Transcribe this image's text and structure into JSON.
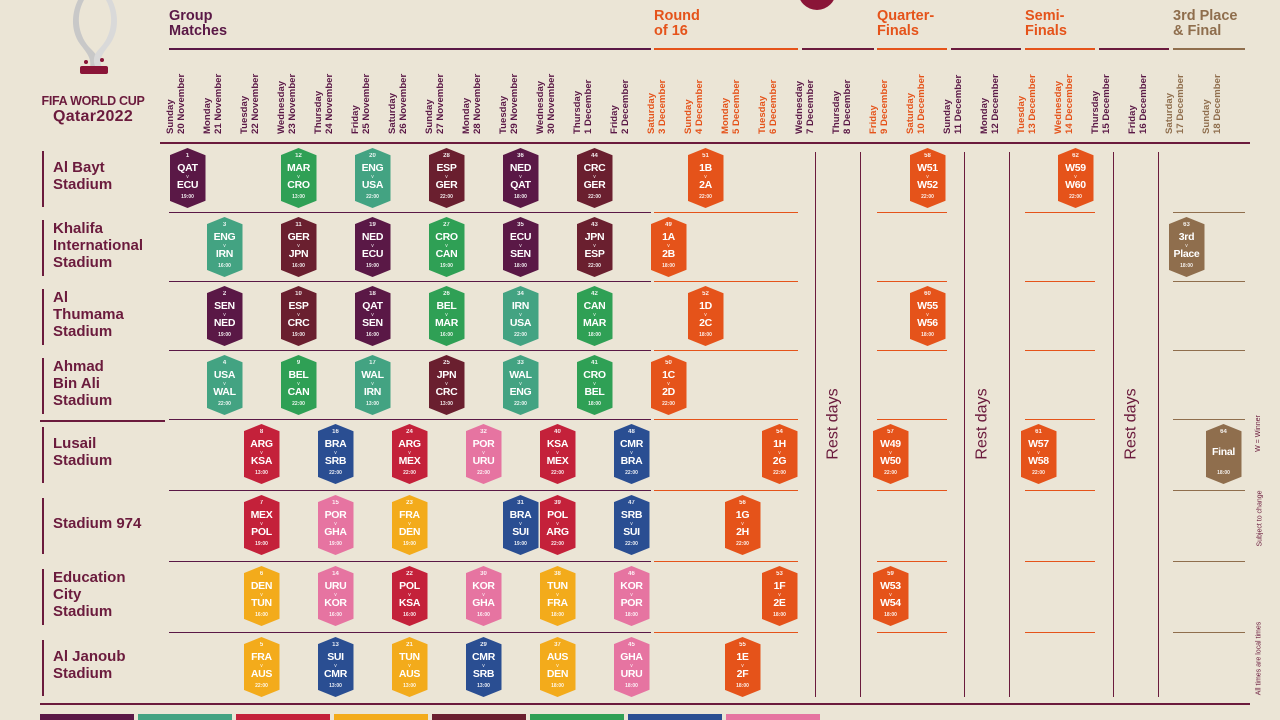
{
  "header": {
    "logo_title": "FIFA WORLD CUP",
    "logo_subtitle": "Qatar2022"
  },
  "colors": {
    "group": "#5a1846",
    "knockout": "#e5531a",
    "third": "#8f6e4d",
    "venue_text": "#6b1b3d"
  },
  "stages": [
    {
      "label_1": "Group",
      "label_2": "Matches",
      "color": "#5a1846"
    },
    {
      "label_1": "Round",
      "label_2": "of 16",
      "color": "#e5531a"
    },
    {
      "label_1": "Quarter-",
      "label_2": "Finals",
      "color": "#e5531a"
    },
    {
      "label_1": "Semi-",
      "label_2": "Finals",
      "color": "#e5531a"
    },
    {
      "label_1": "3rd Place",
      "label_2": "& Final",
      "color": "#8f6e4d"
    }
  ],
  "dates": [
    {
      "day": "Sunday",
      "date": "20 November",
      "stage": "group"
    },
    {
      "day": "Monday",
      "date": "21 November",
      "stage": "group"
    },
    {
      "day": "Tuesday",
      "date": "22 November",
      "stage": "group"
    },
    {
      "day": "Wednesday",
      "date": "23 November",
      "stage": "group"
    },
    {
      "day": "Thursday",
      "date": "24 November",
      "stage": "group"
    },
    {
      "day": "Friday",
      "date": "25 November",
      "stage": "group"
    },
    {
      "day": "Saturday",
      "date": "26 November",
      "stage": "group"
    },
    {
      "day": "Sunday",
      "date": "27 November",
      "stage": "group"
    },
    {
      "day": "Monday",
      "date": "28 November",
      "stage": "group"
    },
    {
      "day": "Tuesday",
      "date": "29 November",
      "stage": "group"
    },
    {
      "day": "Wednesday",
      "date": "30 November",
      "stage": "group"
    },
    {
      "day": "Thursday",
      "date": "1 December",
      "stage": "group"
    },
    {
      "day": "Friday",
      "date": "2 December",
      "stage": "group"
    },
    {
      "day": "Saturday",
      "date": "3 December",
      "stage": "ko"
    },
    {
      "day": "Sunday",
      "date": "4 December",
      "stage": "ko"
    },
    {
      "day": "Monday",
      "date": "5 December",
      "stage": "ko"
    },
    {
      "day": "Tuesday",
      "date": "6 December",
      "stage": "ko"
    },
    {
      "day": "Wednesday",
      "date": "7 December",
      "stage": "rest"
    },
    {
      "day": "Thursday",
      "date": "8 December",
      "stage": "rest"
    },
    {
      "day": "Friday",
      "date": "9 December",
      "stage": "ko"
    },
    {
      "day": "Saturday",
      "date": "10 December",
      "stage": "ko"
    },
    {
      "day": "Sunday",
      "date": "11 December",
      "stage": "rest"
    },
    {
      "day": "Monday",
      "date": "12 December",
      "stage": "rest"
    },
    {
      "day": "Tuesday",
      "date": "13 December",
      "stage": "ko"
    },
    {
      "day": "Wednesday",
      "date": "14 December",
      "stage": "ko"
    },
    {
      "day": "Thursday",
      "date": "15 December",
      "stage": "rest"
    },
    {
      "day": "Friday",
      "date": "16 December",
      "stage": "rest"
    },
    {
      "day": "Saturday",
      "date": "17 December",
      "stage": "final"
    },
    {
      "day": "Sunday",
      "date": "18 December",
      "stage": "final"
    }
  ],
  "venues": [
    {
      "line_1": "Al Bayt",
      "line_2": "Stadium",
      "line_3": ""
    },
    {
      "line_1": "Khalifa",
      "line_2": "International",
      "line_3": "Stadium"
    },
    {
      "line_1": "Al",
      "line_2": "Thumama",
      "line_3": "Stadium"
    },
    {
      "line_1": "Ahmad",
      "line_2": "Bin Ali",
      "line_3": "Stadium"
    },
    {
      "line_1": "Lusail",
      "line_2": "Stadium",
      "line_3": ""
    },
    {
      "line_1": "Stadium 974",
      "line_2": "",
      "line_3": ""
    },
    {
      "line_1": "Education",
      "line_2": "City",
      "line_3": "Stadium"
    },
    {
      "line_1": "Al Janoub",
      "line_2": "Stadium",
      "line_3": ""
    }
  ],
  "rest_label": "Rest days",
  "notes": [
    "W = Winner",
    "Subject to change",
    "All times are local times"
  ],
  "group_colors": {
    "A": "#5a1846",
    "B": "#43a382",
    "C": "#c4213a",
    "D": "#2fa055",
    "E": "#6a1f2f",
    "F": "#2a4e92",
    "G": "#f3ab1b",
    "H": "#e674a1",
    "KO": "#e5531a",
    "TP": "#8f6e4d"
  },
  "matches": [
    {
      "venue": 0,
      "day": 0,
      "num": "1",
      "t1": "QAT",
      "t2": "ECU",
      "time": "19:00",
      "g": "A"
    },
    {
      "venue": 0,
      "day": 3,
      "num": "12",
      "t1": "MAR",
      "t2": "CRO",
      "time": "13:00",
      "g": "D"
    },
    {
      "venue": 0,
      "day": 5,
      "num": "20",
      "t1": "ENG",
      "t2": "USA",
      "time": "22:00",
      "g": "B"
    },
    {
      "venue": 0,
      "day": 7,
      "num": "28",
      "t1": "ESP",
      "t2": "GER",
      "time": "22:00",
      "g": "E"
    },
    {
      "venue": 0,
      "day": 9,
      "num": "36",
      "t1": "NED",
      "t2": "QAT",
      "time": "18:00",
      "g": "A"
    },
    {
      "venue": 0,
      "day": 11,
      "num": "44",
      "t1": "CRC",
      "t2": "GER",
      "time": "22:00",
      "g": "E"
    },
    {
      "venue": 0,
      "day": 14,
      "num": "51",
      "t1": "1B",
      "t2": "2A",
      "time": "22:00",
      "g": "KO"
    },
    {
      "venue": 0,
      "day": 20,
      "num": "58",
      "t1": "W51",
      "t2": "W52",
      "time": "22:00",
      "g": "KO"
    },
    {
      "venue": 0,
      "day": 24,
      "num": "62",
      "t1": "W59",
      "t2": "W60",
      "time": "22:00",
      "g": "KO"
    },
    {
      "venue": 1,
      "day": 1,
      "num": "3",
      "t1": "ENG",
      "t2": "IRN",
      "time": "16:00",
      "g": "B"
    },
    {
      "venue": 1,
      "day": 3,
      "num": "11",
      "t1": "GER",
      "t2": "JPN",
      "time": "16:00",
      "g": "E"
    },
    {
      "venue": 1,
      "day": 5,
      "num": "19",
      "t1": "NED",
      "t2": "ECU",
      "time": "19:00",
      "g": "A"
    },
    {
      "venue": 1,
      "day": 7,
      "num": "27",
      "t1": "CRO",
      "t2": "CAN",
      "time": "19:00",
      "g": "D"
    },
    {
      "venue": 1,
      "day": 9,
      "num": "35",
      "t1": "ECU",
      "t2": "SEN",
      "time": "18:00",
      "g": "A"
    },
    {
      "venue": 1,
      "day": 11,
      "num": "43",
      "t1": "JPN",
      "t2": "ESP",
      "time": "22:00",
      "g": "E"
    },
    {
      "venue": 1,
      "day": 13,
      "num": "49",
      "t1": "1A",
      "t2": "2B",
      "time": "18:00",
      "g": "KO"
    },
    {
      "venue": 1,
      "day": 27,
      "num": "63",
      "t1": "3rd",
      "t2": "Place",
      "time": "18:00",
      "g": "TP"
    },
    {
      "venue": 2,
      "day": 1,
      "num": "2",
      "t1": "SEN",
      "t2": "NED",
      "time": "19:00",
      "g": "A"
    },
    {
      "venue": 2,
      "day": 3,
      "num": "10",
      "t1": "ESP",
      "t2": "CRC",
      "time": "19:00",
      "g": "E"
    },
    {
      "venue": 2,
      "day": 5,
      "num": "18",
      "t1": "QAT",
      "t2": "SEN",
      "time": "16:00",
      "g": "A"
    },
    {
      "venue": 2,
      "day": 7,
      "num": "26",
      "t1": "BEL",
      "t2": "MAR",
      "time": "16:00",
      "g": "D"
    },
    {
      "venue": 2,
      "day": 9,
      "num": "34",
      "t1": "IRN",
      "t2": "USA",
      "time": "22:00",
      "g": "B"
    },
    {
      "venue": 2,
      "day": 11,
      "num": "42",
      "t1": "CAN",
      "t2": "MAR",
      "time": "18:00",
      "g": "D"
    },
    {
      "venue": 2,
      "day": 14,
      "num": "52",
      "t1": "1D",
      "t2": "2C",
      "time": "18:00",
      "g": "KO"
    },
    {
      "venue": 2,
      "day": 20,
      "num": "60",
      "t1": "W55",
      "t2": "W56",
      "time": "18:00",
      "g": "KO"
    },
    {
      "venue": 3,
      "day": 1,
      "num": "4",
      "t1": "USA",
      "t2": "WAL",
      "time": "22:00",
      "g": "B"
    },
    {
      "venue": 3,
      "day": 3,
      "num": "9",
      "t1": "BEL",
      "t2": "CAN",
      "time": "22:00",
      "g": "D"
    },
    {
      "venue": 3,
      "day": 5,
      "num": "17",
      "t1": "WAL",
      "t2": "IRN",
      "time": "13:00",
      "g": "B"
    },
    {
      "venue": 3,
      "day": 7,
      "num": "25",
      "t1": "JPN",
      "t2": "CRC",
      "time": "13:00",
      "g": "E"
    },
    {
      "venue": 3,
      "day": 9,
      "num": "33",
      "t1": "WAL",
      "t2": "ENG",
      "time": "22:00",
      "g": "B"
    },
    {
      "venue": 3,
      "day": 11,
      "num": "41",
      "t1": "CRO",
      "t2": "BEL",
      "time": "18:00",
      "g": "D"
    },
    {
      "venue": 3,
      "day": 13,
      "num": "50",
      "t1": "1C",
      "t2": "2D",
      "time": "22:00",
      "g": "KO"
    },
    {
      "venue": 4,
      "day": 2,
      "num": "8",
      "t1": "ARG",
      "t2": "KSA",
      "time": "13:00",
      "g": "C"
    },
    {
      "venue": 4,
      "day": 4,
      "num": "16",
      "t1": "BRA",
      "t2": "SRB",
      "time": "22:00",
      "g": "F"
    },
    {
      "venue": 4,
      "day": 6,
      "num": "24",
      "t1": "ARG",
      "t2": "MEX",
      "time": "22:00",
      "g": "C"
    },
    {
      "venue": 4,
      "day": 8,
      "num": "32",
      "t1": "POR",
      "t2": "URU",
      "time": "22:00",
      "g": "H"
    },
    {
      "venue": 4,
      "day": 10,
      "num": "40",
      "t1": "KSA",
      "t2": "MEX",
      "time": "22:00",
      "g": "C"
    },
    {
      "venue": 4,
      "day": 12,
      "num": "48",
      "t1": "CMR",
      "t2": "BRA",
      "time": "22:00",
      "g": "F"
    },
    {
      "venue": 4,
      "day": 16,
      "num": "54",
      "t1": "1H",
      "t2": "2G",
      "time": "22:00",
      "g": "KO"
    },
    {
      "venue": 4,
      "day": 19,
      "num": "57",
      "t1": "W49",
      "t2": "W50",
      "time": "22:00",
      "g": "KO"
    },
    {
      "venue": 4,
      "day": 23,
      "num": "61",
      "t1": "W57",
      "t2": "W58",
      "time": "22:00",
      "g": "KO"
    },
    {
      "venue": 4,
      "day": 28,
      "num": "64",
      "t1": "Final",
      "t2": "",
      "time": "18:00",
      "g": "TP"
    },
    {
      "venue": 5,
      "day": 2,
      "num": "7",
      "t1": "MEX",
      "t2": "POL",
      "time": "19:00",
      "g": "C"
    },
    {
      "venue": 5,
      "day": 4,
      "num": "15",
      "t1": "POR",
      "t2": "GHA",
      "time": "19:00",
      "g": "H"
    },
    {
      "venue": 5,
      "day": 6,
      "num": "23",
      "t1": "FRA",
      "t2": "DEN",
      "time": "19:00",
      "g": "G"
    },
    {
      "venue": 5,
      "day": 9,
      "num": "31",
      "t1": "BRA",
      "t2": "SUI",
      "time": "19:00",
      "g": "F"
    },
    {
      "venue": 5,
      "day": 10,
      "num": "39",
      "t1": "POL",
      "t2": "ARG",
      "time": "22:00",
      "g": "C"
    },
    {
      "venue": 5,
      "day": 12,
      "num": "47",
      "t1": "SRB",
      "t2": "SUI",
      "time": "22:00",
      "g": "F"
    },
    {
      "venue": 5,
      "day": 15,
      "num": "56",
      "t1": "1G",
      "t2": "2H",
      "time": "22:00",
      "g": "KO"
    },
    {
      "venue": 6,
      "day": 2,
      "num": "6",
      "t1": "DEN",
      "t2": "TUN",
      "time": "16:00",
      "g": "G"
    },
    {
      "venue": 6,
      "day": 4,
      "num": "14",
      "t1": "URU",
      "t2": "KOR",
      "time": "16:00",
      "g": "H"
    },
    {
      "venue": 6,
      "day": 6,
      "num": "22",
      "t1": "POL",
      "t2": "KSA",
      "time": "16:00",
      "g": "C"
    },
    {
      "venue": 6,
      "day": 8,
      "num": "30",
      "t1": "KOR",
      "t2": "GHA",
      "time": "16:00",
      "g": "H"
    },
    {
      "venue": 6,
      "day": 10,
      "num": "38",
      "t1": "TUN",
      "t2": "FRA",
      "time": "18:00",
      "g": "G"
    },
    {
      "venue": 6,
      "day": 12,
      "num": "46",
      "t1": "KOR",
      "t2": "POR",
      "time": "18:00",
      "g": "H"
    },
    {
      "venue": 6,
      "day": 16,
      "num": "53",
      "t1": "1F",
      "t2": "2E",
      "time": "18:00",
      "g": "KO"
    },
    {
      "venue": 6,
      "day": 19,
      "num": "59",
      "t1": "W53",
      "t2": "W54",
      "time": "18:00",
      "g": "KO"
    },
    {
      "venue": 7,
      "day": 2,
      "num": "5",
      "t1": "FRA",
      "t2": "AUS",
      "time": "22:00",
      "g": "G"
    },
    {
      "venue": 7,
      "day": 4,
      "num": "13",
      "t1": "SUI",
      "t2": "CMR",
      "time": "13:00",
      "g": "F"
    },
    {
      "venue": 7,
      "day": 6,
      "num": "21",
      "t1": "TUN",
      "t2": "AUS",
      "time": "13:00",
      "g": "G"
    },
    {
      "venue": 7,
      "day": 8,
      "num": "29",
      "t1": "CMR",
      "t2": "SRB",
      "time": "13:00",
      "g": "F"
    },
    {
      "venue": 7,
      "day": 10,
      "num": "37",
      "t1": "AUS",
      "t2": "DEN",
      "time": "18:00",
      "g": "G"
    },
    {
      "venue": 7,
      "day": 12,
      "num": "45",
      "t1": "GHA",
      "t2": "URU",
      "time": "18:00",
      "g": "H"
    },
    {
      "venue": 7,
      "day": 15,
      "num": "55",
      "t1": "1E",
      "t2": "2F",
      "time": "18:00",
      "g": "KO"
    }
  ]
}
